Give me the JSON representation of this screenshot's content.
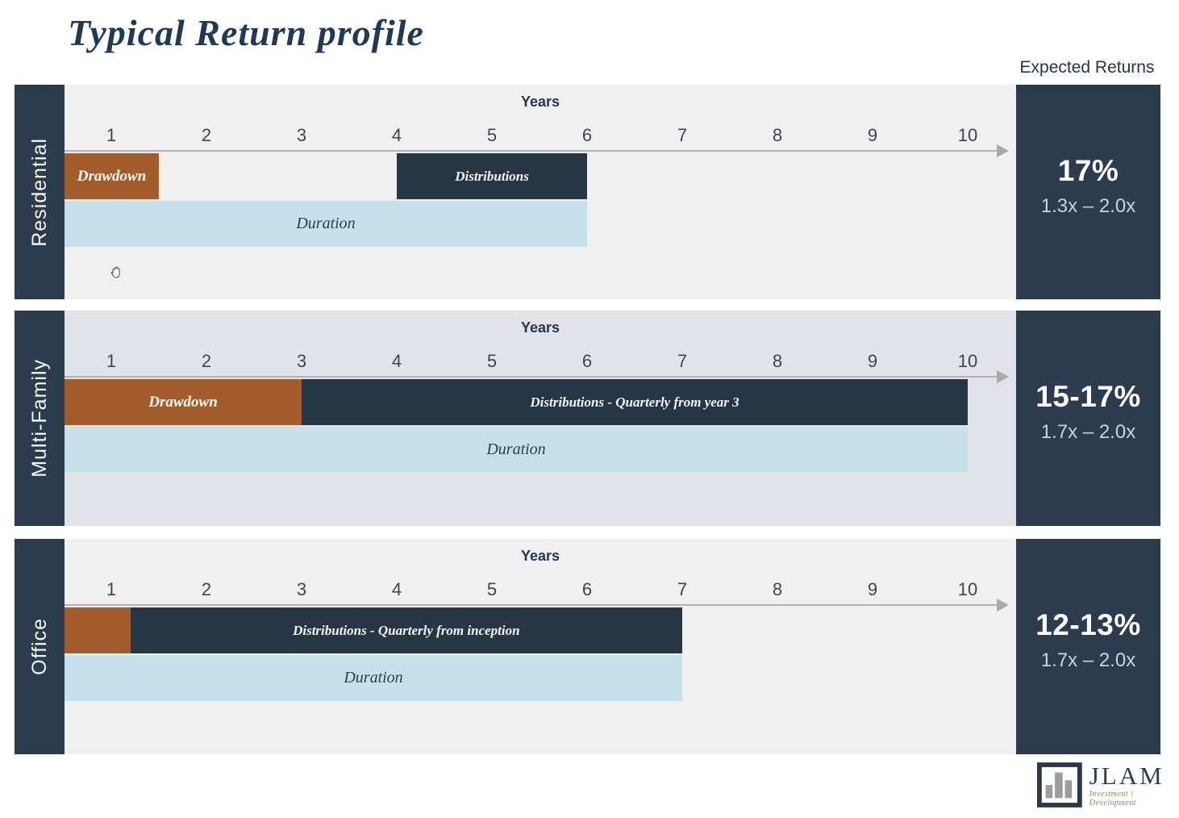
{
  "page": {
    "title": "Typical Return profile",
    "expected_returns_header": "Expected Returns"
  },
  "colors": {
    "navy": "#2c3b4d",
    "bar_navy": "#273645",
    "drawdown_orange": "#a55c2d",
    "duration_blue": "#c7e1ea",
    "residential_bg": "#f1f0f0",
    "multifamily_bg": "#e1e3e9",
    "office_bg": "#f1f0f0",
    "axis_gray": "#b2b2b4",
    "multiple_text": "#bcd8e8"
  },
  "chart_data": {
    "type": "bar",
    "subtype": "horizontal-timeline-gantt",
    "title": "Typical Return profile",
    "xlabel": "Years",
    "x_ticks": [
      1,
      2,
      3,
      4,
      5,
      6,
      7,
      8,
      9,
      10
    ],
    "axis_note": "axis origin at tick 0.5, arrow extends past tick 10",
    "legend_position": "none",
    "sections": [
      {
        "name": "Residential",
        "background": "#f1f0f0",
        "lanes": [
          [
            {
              "label": "Drawdown",
              "type": "drawdown",
              "start": 0.5,
              "end": 1.5
            },
            {
              "label": "Distributions",
              "type": "distributions",
              "start": 4,
              "end": 6
            }
          ],
          [
            {
              "label": "Duration",
              "type": "duration",
              "start": 0.5,
              "end": 6
            }
          ]
        ],
        "expected_return": "17%",
        "equity_multiple": "1.3x – 2.0x",
        "has_cursor": true
      },
      {
        "name": "Multi-Family",
        "background": "#e1e3e9",
        "lanes": [
          [
            {
              "label": "Drawdown",
              "type": "drawdown",
              "start": 0.5,
              "end": 3
            },
            {
              "label": "Distributions - Quarterly from year 3",
              "type": "distributions",
              "start": 3,
              "end": 10
            }
          ],
          [
            {
              "label": "Duration",
              "type": "duration",
              "start": 0.5,
              "end": 10
            }
          ]
        ],
        "expected_return": "15-17%",
        "equity_multiple": "1.7x – 2.0x",
        "has_cursor": false
      },
      {
        "name": "Office",
        "background": "#f1f0f0",
        "lanes": [
          [
            {
              "label": "",
              "type": "drawdown",
              "start": 0.5,
              "end": 1.2
            },
            {
              "label": "Distributions - Quarterly from inception",
              "type": "distributions",
              "start": 1.2,
              "end": 7
            }
          ],
          [
            {
              "label": "Duration",
              "type": "duration",
              "start": 0.5,
              "end": 7
            }
          ]
        ],
        "expected_return": "12-13%",
        "equity_multiple": "1.7x – 2.0x",
        "has_cursor": false
      }
    ]
  },
  "logo": {
    "brand": "JLAM",
    "tagline": "Investment | Development"
  }
}
